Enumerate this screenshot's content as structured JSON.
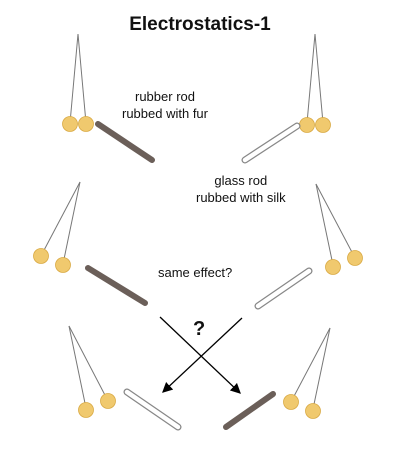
{
  "title": "Electrostatics-1",
  "labels": {
    "rubber_line1": "rubber rod",
    "rubber_line2": "rubbed with fur",
    "glass_line1": "glass rod",
    "glass_line2": "rubbed with silk",
    "same_effect": "same effect?",
    "question": "?"
  },
  "colors": {
    "ball": "#f0c96e",
    "ball_stroke": "#d9aa44",
    "thread": "#777777",
    "rubber_rod": "#6b5f59",
    "glass_rod_fill": "#ffffff",
    "glass_rod_stroke": "#888888",
    "arrow": "#000000"
  }
}
